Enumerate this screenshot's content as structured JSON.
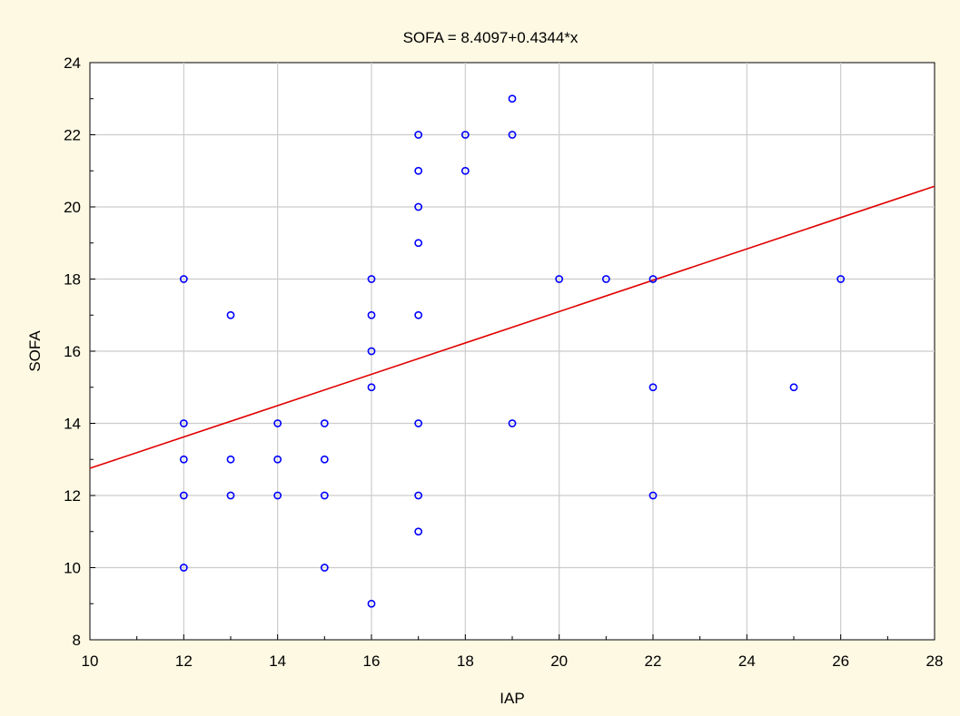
{
  "chart_data": {
    "type": "scatter",
    "title": "SOFA = 8.4097+0.4344*x",
    "xlabel": "IAP",
    "ylabel": "SOFA",
    "xlim": [
      10,
      28
    ],
    "ylim": [
      8,
      24
    ],
    "xticks": [
      10,
      12,
      14,
      16,
      18,
      20,
      22,
      24,
      26,
      28
    ],
    "yticks": [
      8,
      10,
      12,
      14,
      16,
      18,
      20,
      22,
      24
    ],
    "grid": true,
    "colors": {
      "points": "#0000ff",
      "fit_line": "#e00000",
      "background": "#fdf9e3",
      "plot_area": "#ffffff",
      "grid": "#cccccc"
    },
    "points": [
      {
        "x": 12,
        "y": 18
      },
      {
        "x": 12,
        "y": 14
      },
      {
        "x": 12,
        "y": 13
      },
      {
        "x": 12,
        "y": 12
      },
      {
        "x": 12,
        "y": 10
      },
      {
        "x": 13,
        "y": 17
      },
      {
        "x": 13,
        "y": 13
      },
      {
        "x": 13,
        "y": 12
      },
      {
        "x": 14,
        "y": 14
      },
      {
        "x": 14,
        "y": 13
      },
      {
        "x": 14,
        "y": 12
      },
      {
        "x": 15,
        "y": 14
      },
      {
        "x": 15,
        "y": 13
      },
      {
        "x": 15,
        "y": 12
      },
      {
        "x": 15,
        "y": 10
      },
      {
        "x": 16,
        "y": 18
      },
      {
        "x": 16,
        "y": 17
      },
      {
        "x": 16,
        "y": 16
      },
      {
        "x": 16,
        "y": 15
      },
      {
        "x": 16,
        "y": 9
      },
      {
        "x": 17,
        "y": 22
      },
      {
        "x": 17,
        "y": 21
      },
      {
        "x": 17,
        "y": 20
      },
      {
        "x": 17,
        "y": 19
      },
      {
        "x": 17,
        "y": 17
      },
      {
        "x": 17,
        "y": 14
      },
      {
        "x": 17,
        "y": 12
      },
      {
        "x": 17,
        "y": 11
      },
      {
        "x": 18,
        "y": 22
      },
      {
        "x": 18,
        "y": 21
      },
      {
        "x": 19,
        "y": 23
      },
      {
        "x": 19,
        "y": 22
      },
      {
        "x": 19,
        "y": 14
      },
      {
        "x": 20,
        "y": 18
      },
      {
        "x": 21,
        "y": 18
      },
      {
        "x": 22,
        "y": 18
      },
      {
        "x": 22,
        "y": 15
      },
      {
        "x": 22,
        "y": 12
      },
      {
        "x": 25,
        "y": 15
      },
      {
        "x": 26,
        "y": 18
      }
    ],
    "fit_line": {
      "intercept": 8.4097,
      "slope": 0.4344
    }
  }
}
